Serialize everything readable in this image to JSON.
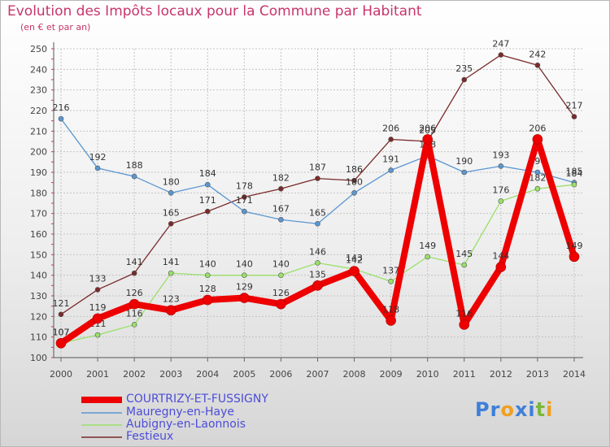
{
  "title": "Evolution des Impôts locaux pour la Commune par Habitant",
  "subtitle": "(en € et par an)",
  "logo": {
    "parts": [
      "Pr",
      "o",
      "x",
      "i",
      "t",
      "i"
    ],
    "colors": [
      "#3f7fd8",
      "#f0a020",
      "#3f7fd8",
      "#3f7fd8",
      "#7ab83a",
      "#f0a020"
    ]
  },
  "chart_data": {
    "type": "line",
    "title": "Evolution des Impôts locaux pour la Commune par Habitant",
    "ylabel": "(en € et par an)",
    "xlabel": "",
    "ylim": [
      100,
      250
    ],
    "yticks": [
      100,
      110,
      120,
      130,
      140,
      150,
      160,
      170,
      180,
      190,
      200,
      210,
      220,
      230,
      240,
      250
    ],
    "grid": true,
    "x": [
      2000,
      2001,
      2002,
      2003,
      2004,
      2005,
      2006,
      2007,
      2008,
      2009,
      2010,
      2011,
      2012,
      2013,
      2014
    ],
    "series": [
      {
        "name": "Festieux",
        "color": "#7a2a2a",
        "values": [
          121,
          133,
          141,
          165,
          171,
          178,
          182,
          187,
          186,
          206,
          205,
          235,
          247,
          242,
          217
        ]
      },
      {
        "name": "Mauregny-en-Haye",
        "color": "#5a96d2",
        "values": [
          216,
          192,
          188,
          180,
          184,
          171,
          167,
          165,
          180,
          191,
          198,
          190,
          193,
          190,
          185
        ]
      },
      {
        "name": "Aubigny-en-Laonnois",
        "color": "#9ae06a",
        "values": [
          107,
          111,
          116,
          141,
          140,
          140,
          140,
          146,
          143,
          137,
          149,
          145,
          176,
          182,
          184
        ]
      },
      {
        "name": "COURTRIZY-ET-FUSSIGNY",
        "color": "#ee0000",
        "values": [
          107,
          119,
          126,
          123,
          128,
          129,
          126,
          135,
          142,
          118,
          206,
          116,
          144,
          206,
          149
        ]
      }
    ],
    "legend": [
      "COURTRIZY-ET-FUSSIGNY",
      "Mauregny-en-Haye",
      "Aubigny-en-Laonnois",
      "Festieux"
    ]
  }
}
